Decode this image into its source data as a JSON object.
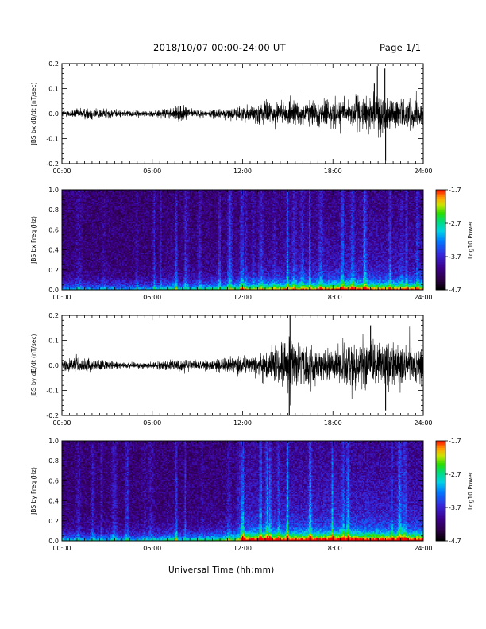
{
  "header": {
    "title": "2018/10/07  00:00-24:00 UT",
    "page": "Page 1/1"
  },
  "xaxis_label": "Universal Time (hh:mm)",
  "chart_data": [
    {
      "type": "line",
      "ylabel": "JBS bx dB/dt (nT/sec)",
      "xlim": [
        0,
        24
      ],
      "ylim": [
        -0.2,
        0.2
      ],
      "xticks": [
        "00:00",
        "06:00",
        "12:00",
        "18:00",
        "24:00"
      ],
      "yticks": [
        "-0.2",
        "-0.1",
        "0.0",
        "0.1",
        "0.2"
      ],
      "amplitude_envelope": {
        "x": [
          0,
          2,
          4,
          6,
          7.5,
          8,
          9,
          11,
          12,
          13,
          15,
          17,
          19,
          20.5,
          21,
          22,
          23,
          24
        ],
        "y": [
          0.012,
          0.022,
          0.012,
          0.01,
          0.02,
          0.03,
          0.012,
          0.018,
          0.025,
          0.035,
          0.045,
          0.048,
          0.055,
          0.06,
          0.07,
          0.06,
          0.05,
          0.045
        ]
      },
      "spikes": [
        {
          "x": 20.75,
          "y": 0.12
        },
        {
          "x": 20.95,
          "y": 0.19
        },
        {
          "x": 21.5,
          "y": -0.19
        },
        {
          "x": 21.45,
          "y": 0.18
        }
      ]
    },
    {
      "type": "heatmap",
      "ylabel": "JBS bx Freq (Hz)",
      "xlim": [
        0,
        24
      ],
      "ylim": [
        0,
        1.0
      ],
      "xticks": [
        "00:00",
        "06:00",
        "12:00",
        "18:00",
        "24:00"
      ],
      "yticks": [
        "0.0",
        "0.2",
        "0.4",
        "0.6",
        "0.8",
        "1.0"
      ],
      "colorbar": {
        "label": "Log10 Power",
        "ticks": [
          "-1.7",
          "-2.7",
          "-3.7",
          "-4.7"
        ],
        "range": [
          -4.7,
          -1.7
        ]
      },
      "activity_envelope": {
        "x": [
          0,
          6,
          7.5,
          8,
          12,
          15,
          17,
          19,
          21,
          24
        ],
        "y": [
          0.05,
          0.05,
          0.3,
          0.1,
          0.4,
          0.55,
          0.6,
          0.7,
          0.65,
          0.6
        ]
      }
    },
    {
      "type": "line",
      "ylabel": "JBS by dB/dt (nT/sec)",
      "xlim": [
        0,
        24
      ],
      "ylim": [
        -0.2,
        0.2
      ],
      "xticks": [
        "00:00",
        "06:00",
        "12:00",
        "18:00",
        "24:00"
      ],
      "yticks": [
        "-0.2",
        "-0.1",
        "0.0",
        "0.1",
        "0.2"
      ],
      "amplitude_envelope": {
        "x": [
          0,
          1,
          2,
          4,
          6,
          8,
          9,
          12,
          13,
          14.5,
          15,
          16,
          18,
          19,
          20,
          21,
          22,
          23,
          24
        ],
        "y": [
          0.02,
          0.03,
          0.02,
          0.012,
          0.01,
          0.025,
          0.015,
          0.03,
          0.045,
          0.07,
          0.12,
          0.07,
          0.06,
          0.08,
          0.09,
          0.08,
          0.07,
          0.06,
          0.055
        ]
      },
      "spikes": [
        {
          "x": 15.15,
          "y": 0.2
        },
        {
          "x": 15.1,
          "y": -0.2
        },
        {
          "x": 21.5,
          "y": -0.18
        },
        {
          "x": 20.5,
          "y": 0.16
        }
      ]
    },
    {
      "type": "heatmap",
      "ylabel": "JBS by Freq (Hz)",
      "xlim": [
        0,
        24
      ],
      "ylim": [
        0,
        1.0
      ],
      "xticks": [
        "00:00",
        "06:00",
        "12:00",
        "18:00",
        "24:00"
      ],
      "yticks": [
        "0.0",
        "0.2",
        "0.4",
        "0.6",
        "0.8",
        "1.0"
      ],
      "colorbar": {
        "label": "Log10 Power",
        "ticks": [
          "-1.7",
          "-2.7",
          "-3.7",
          "-4.7"
        ],
        "range": [
          -4.7,
          -1.7
        ]
      },
      "activity_envelope": {
        "x": [
          0,
          6,
          7.5,
          8,
          11.8,
          12,
          15,
          17,
          19,
          21,
          24
        ],
        "y": [
          0.08,
          0.08,
          0.3,
          0.15,
          0.4,
          0.85,
          0.8,
          0.85,
          0.9,
          0.85,
          0.8
        ]
      }
    }
  ]
}
